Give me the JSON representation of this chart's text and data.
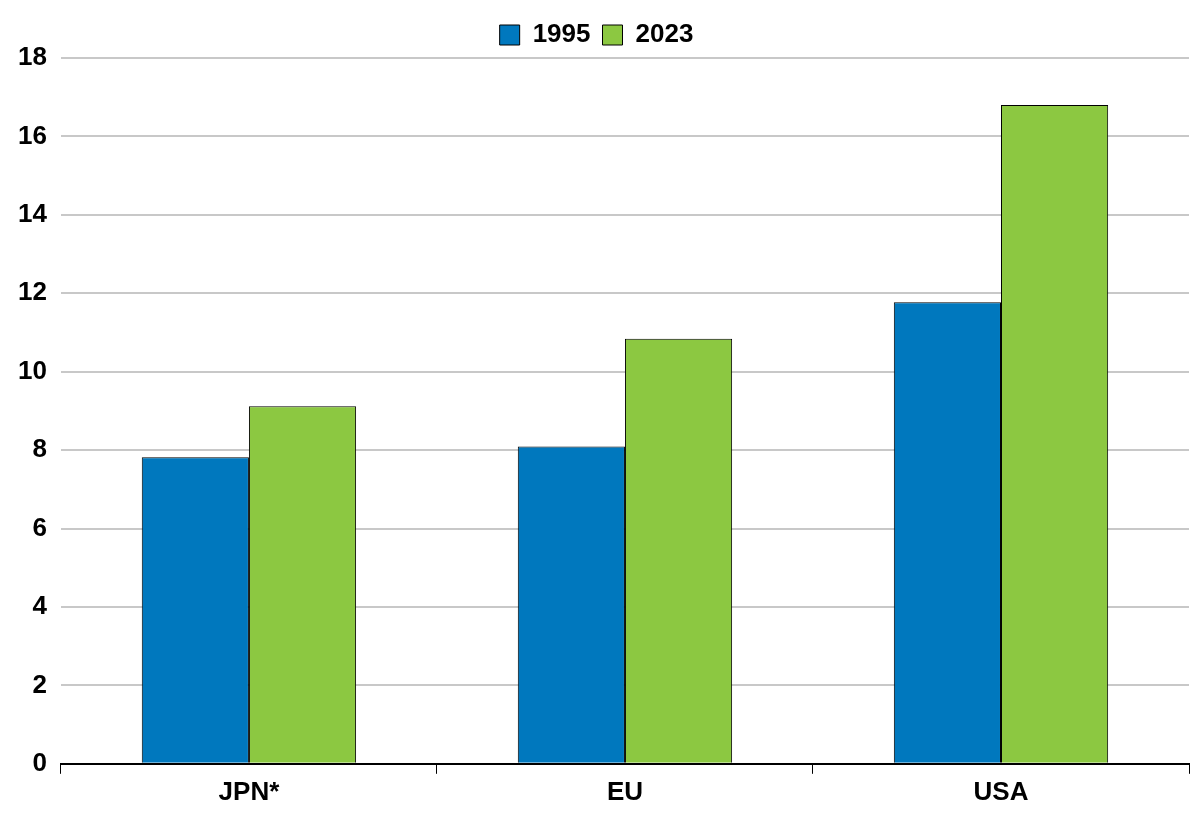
{
  "chart_data": {
    "type": "bar",
    "categories": [
      "JPN*",
      "EU",
      "USA"
    ],
    "series": [
      {
        "name": "1995",
        "color": "#0078be",
        "values": [
          7.82,
          8.09,
          11.77
        ]
      },
      {
        "name": "2023",
        "color": "#8cc841",
        "values": [
          9.12,
          10.84,
          16.8
        ]
      }
    ],
    "ylim": [
      0,
      18
    ],
    "yticks": [
      0,
      2,
      4,
      6,
      8,
      10,
      12,
      14,
      16,
      18
    ],
    "grid": "y",
    "legend": "top"
  }
}
